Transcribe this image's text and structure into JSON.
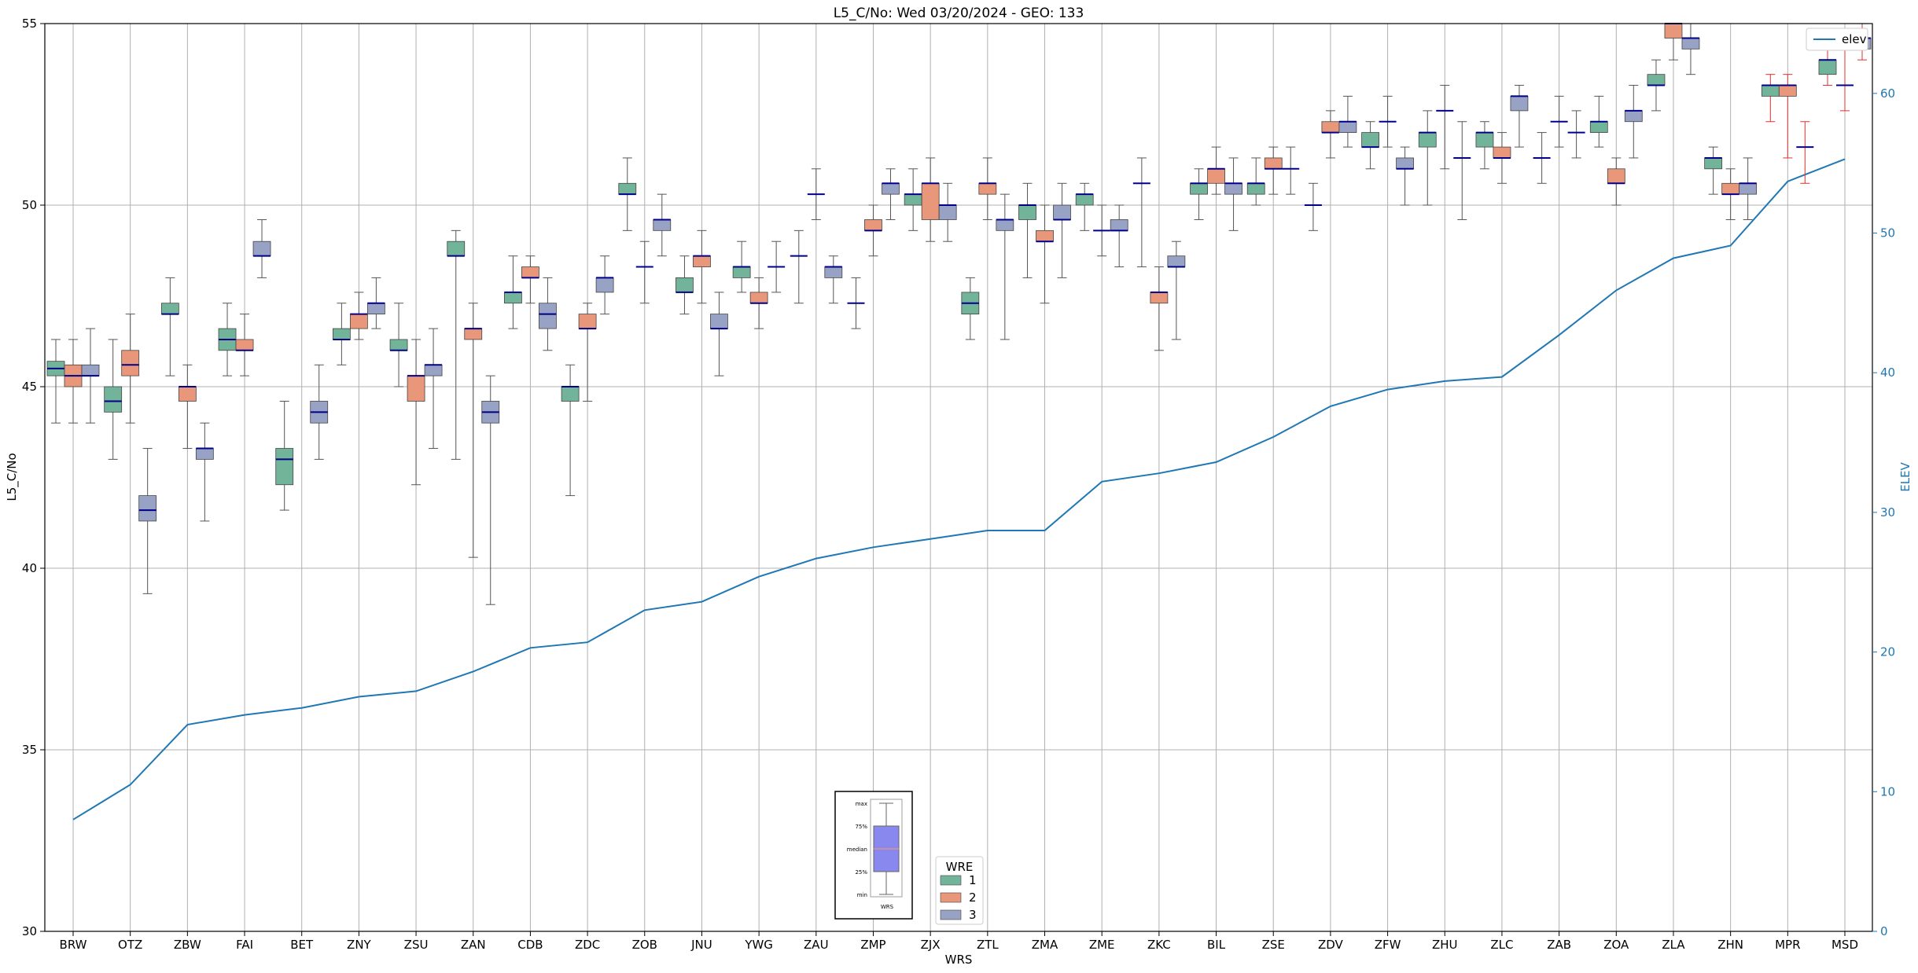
{
  "chart_data": {
    "type": "box",
    "title": "L5_C/No: Wed 03/20/2024 - GEO: 133",
    "xlabel": "WRS",
    "ylabel": "L5_C/No",
    "y2label": "ELEV",
    "ylim": [
      30,
      55
    ],
    "y2lim": [
      0,
      65
    ],
    "yticks": [
      30,
      35,
      40,
      45,
      50,
      55
    ],
    "y2ticks": [
      0,
      10,
      20,
      30,
      40,
      50,
      60
    ],
    "grid": true,
    "categories": [
      "BRW",
      "OTZ",
      "ZBW",
      "FAI",
      "BET",
      "ZNY",
      "ZSU",
      "ZAN",
      "CDB",
      "ZDC",
      "ZOB",
      "JNU",
      "YWG",
      "ZAU",
      "ZMP",
      "ZJX",
      "ZTL",
      "ZMA",
      "ZME",
      "ZKC",
      "BIL",
      "ZSE",
      "ZDV",
      "ZFW",
      "ZHU",
      "ZLC",
      "ZAB",
      "ZOA",
      "ZLA",
      "ZHN",
      "MPR",
      "MSD"
    ],
    "elev_series": {
      "name": "elev",
      "values": [
        8.0,
        10.5,
        14.8,
        15.5,
        16.0,
        16.8,
        17.2,
        18.6,
        20.3,
        20.7,
        23.0,
        23.6,
        25.4,
        26.7,
        27.5,
        28.1,
        28.7,
        28.7,
        32.2,
        32.8,
        33.6,
        35.4,
        37.6,
        38.8,
        39.4,
        39.7,
        42.7,
        45.9,
        48.2,
        49.1,
        53.7,
        55.3
      ]
    },
    "legend": {
      "title": "WRE",
      "placement": "lower-center",
      "entries": [
        "1",
        "2",
        "3"
      ],
      "colors": [
        "#72b49a",
        "#e8977a",
        "#97a2c4"
      ]
    },
    "elev_legend": {
      "label": "elev",
      "placement": "top-right",
      "color": "#1f77b4"
    },
    "box_series": [
      {
        "wrs": "BRW",
        "wre": "1",
        "min": 44.0,
        "q1": 45.3,
        "median": 45.5,
        "q3": 45.7,
        "max": 46.3
      },
      {
        "wrs": "BRW",
        "wre": "2",
        "min": 44.0,
        "q1": 45.0,
        "median": 45.3,
        "q3": 45.6,
        "max": 46.3
      },
      {
        "wrs": "BRW",
        "wre": "3",
        "min": 44.0,
        "q1": 45.3,
        "median": 45.3,
        "q3": 45.6,
        "max": 46.6
      },
      {
        "wrs": "OTZ",
        "wre": "1",
        "min": 43.0,
        "q1": 44.3,
        "median": 44.6,
        "q3": 45.0,
        "max": 46.3
      },
      {
        "wrs": "OTZ",
        "wre": "2",
        "min": 44.0,
        "q1": 45.3,
        "median": 45.6,
        "q3": 46.0,
        "max": 47.0
      },
      {
        "wrs": "OTZ",
        "wre": "3",
        "min": 39.3,
        "q1": 41.3,
        "median": 41.6,
        "q3": 42.0,
        "max": 43.3
      },
      {
        "wrs": "ZBW",
        "wre": "1",
        "min": 45.3,
        "q1": 47.0,
        "median": 47.0,
        "q3": 47.3,
        "max": 48.0
      },
      {
        "wrs": "ZBW",
        "wre": "2",
        "min": 43.3,
        "q1": 44.6,
        "median": 45.0,
        "q3": 45.0,
        "max": 45.6
      },
      {
        "wrs": "ZBW",
        "wre": "3",
        "min": 41.3,
        "q1": 43.0,
        "median": 43.3,
        "q3": 43.3,
        "max": 44.0
      },
      {
        "wrs": "FAI",
        "wre": "1",
        "min": 45.3,
        "q1": 46.0,
        "median": 46.3,
        "q3": 46.6,
        "max": 47.3
      },
      {
        "wrs": "FAI",
        "wre": "2",
        "min": 45.3,
        "q1": 46.0,
        "median": 46.0,
        "q3": 46.3,
        "max": 47.0
      },
      {
        "wrs": "FAI",
        "wre": "3",
        "min": 48.0,
        "q1": 48.6,
        "median": 48.6,
        "q3": 49.0,
        "max": 49.6
      },
      {
        "wrs": "BET",
        "wre": "1",
        "min": 41.6,
        "q1": 42.3,
        "median": 43.0,
        "q3": 43.3,
        "max": 44.6
      },
      {
        "wrs": "BET",
        "wre": "3",
        "min": 43.0,
        "q1": 44.0,
        "median": 44.3,
        "q3": 44.6,
        "max": 45.6
      },
      {
        "wrs": "ZNY",
        "wre": "1",
        "min": 45.6,
        "q1": 46.3,
        "median": 46.3,
        "q3": 46.6,
        "max": 47.3
      },
      {
        "wrs": "ZNY",
        "wre": "2",
        "min": 46.3,
        "q1": 46.6,
        "median": 47.0,
        "q3": 47.0,
        "max": 47.6
      },
      {
        "wrs": "ZNY",
        "wre": "3",
        "min": 46.6,
        "q1": 47.0,
        "median": 47.3,
        "q3": 47.3,
        "max": 48.0
      },
      {
        "wrs": "ZSU",
        "wre": "1",
        "min": 45.0,
        "q1": 46.0,
        "median": 46.0,
        "q3": 46.3,
        "max": 47.3
      },
      {
        "wrs": "ZSU",
        "wre": "2",
        "min": 42.3,
        "q1": 44.6,
        "median": 45.3,
        "q3": 45.3,
        "max": 46.3
      },
      {
        "wrs": "ZSU",
        "wre": "3",
        "min": 43.3,
        "q1": 45.3,
        "median": 45.6,
        "q3": 45.6,
        "max": 46.6
      },
      {
        "wrs": "ZAN",
        "wre": "1",
        "min": 43.0,
        "q1": 48.6,
        "median": 48.6,
        "q3": 49.0,
        "max": 49.3
      },
      {
        "wrs": "ZAN",
        "wre": "2",
        "min": 40.3,
        "q1": 46.3,
        "median": 46.6,
        "q3": 46.6,
        "max": 47.3
      },
      {
        "wrs": "ZAN",
        "wre": "3",
        "min": 39.0,
        "q1": 44.0,
        "median": 44.3,
        "q3": 44.6,
        "max": 45.3
      },
      {
        "wrs": "CDB",
        "wre": "1",
        "min": 46.6,
        "q1": 47.3,
        "median": 47.6,
        "q3": 47.6,
        "max": 48.6
      },
      {
        "wrs": "CDB",
        "wre": "2",
        "min": 47.3,
        "q1": 48.0,
        "median": 48.0,
        "q3": 48.3,
        "max": 48.6
      },
      {
        "wrs": "CDB",
        "wre": "3",
        "min": 46.0,
        "q1": 46.6,
        "median": 47.0,
        "q3": 47.3,
        "max": 48.0
      },
      {
        "wrs": "ZDC",
        "wre": "1",
        "min": 42.0,
        "q1": 44.6,
        "median": 45.0,
        "q3": 45.0,
        "max": 45.6
      },
      {
        "wrs": "ZDC",
        "wre": "2",
        "min": 44.6,
        "q1": 46.6,
        "median": 46.6,
        "q3": 47.0,
        "max": 47.3
      },
      {
        "wrs": "ZDC",
        "wre": "3",
        "min": 47.0,
        "q1": 47.6,
        "median": 48.0,
        "q3": 48.0,
        "max": 48.6
      },
      {
        "wrs": "ZOB",
        "wre": "1",
        "min": 49.3,
        "q1": 50.3,
        "median": 50.3,
        "q3": 50.6,
        "max": 51.3
      },
      {
        "wrs": "ZOB",
        "wre": "2",
        "min": 47.3,
        "q1": 48.3,
        "median": 48.3,
        "q3": 48.3,
        "max": 49.0
      },
      {
        "wrs": "ZOB",
        "wre": "3",
        "min": 48.6,
        "q1": 49.3,
        "median": 49.6,
        "q3": 49.6,
        "max": 50.3
      },
      {
        "wrs": "JNU",
        "wre": "1",
        "min": 47.0,
        "q1": 47.6,
        "median": 47.6,
        "q3": 48.0,
        "max": 48.6
      },
      {
        "wrs": "JNU",
        "wre": "2",
        "min": 47.3,
        "q1": 48.3,
        "median": 48.6,
        "q3": 48.6,
        "max": 49.3
      },
      {
        "wrs": "JNU",
        "wre": "3",
        "min": 45.3,
        "q1": 46.6,
        "median": 46.6,
        "q3": 47.0,
        "max": 47.6
      },
      {
        "wrs": "YWG",
        "wre": "1",
        "min": 47.6,
        "q1": 48.0,
        "median": 48.3,
        "q3": 48.3,
        "max": 49.0
      },
      {
        "wrs": "YWG",
        "wre": "2",
        "min": 46.6,
        "q1": 47.3,
        "median": 47.3,
        "q3": 47.6,
        "max": 48.0
      },
      {
        "wrs": "YWG",
        "wre": "3",
        "min": 47.6,
        "q1": 48.3,
        "median": 48.3,
        "q3": 48.3,
        "max": 49.0
      },
      {
        "wrs": "ZAU",
        "wre": "1",
        "min": 47.3,
        "q1": 48.6,
        "median": 48.6,
        "q3": 48.6,
        "max": 49.3
      },
      {
        "wrs": "ZAU",
        "wre": "2",
        "min": 49.6,
        "q1": 50.3,
        "median": 50.3,
        "q3": 50.3,
        "max": 51.0
      },
      {
        "wrs": "ZAU",
        "wre": "3",
        "min": 47.3,
        "q1": 48.0,
        "median": 48.3,
        "q3": 48.3,
        "max": 48.6
      },
      {
        "wrs": "ZMP",
        "wre": "1",
        "min": 46.6,
        "q1": 47.3,
        "median": 47.3,
        "q3": 47.3,
        "max": 48.0
      },
      {
        "wrs": "ZMP",
        "wre": "2",
        "min": 48.6,
        "q1": 49.3,
        "median": 49.3,
        "q3": 49.6,
        "max": 50.0
      },
      {
        "wrs": "ZMP",
        "wre": "3",
        "min": 49.6,
        "q1": 50.3,
        "median": 50.6,
        "q3": 50.6,
        "max": 51.0
      },
      {
        "wrs": "ZJX",
        "wre": "1",
        "min": 49.3,
        "q1": 50.0,
        "median": 50.3,
        "q3": 50.3,
        "max": 51.0
      },
      {
        "wrs": "ZJX",
        "wre": "2",
        "min": 49.0,
        "q1": 49.6,
        "median": 50.6,
        "q3": 50.6,
        "max": 51.3
      },
      {
        "wrs": "ZJX",
        "wre": "3",
        "min": 49.0,
        "q1": 49.6,
        "median": 50.0,
        "q3": 50.0,
        "max": 50.6
      },
      {
        "wrs": "ZTL",
        "wre": "1",
        "min": 46.3,
        "q1": 47.0,
        "median": 47.3,
        "q3": 47.6,
        "max": 48.0
      },
      {
        "wrs": "ZTL",
        "wre": "2",
        "min": 49.6,
        "q1": 50.3,
        "median": 50.6,
        "q3": 50.6,
        "max": 51.3
      },
      {
        "wrs": "ZTL",
        "wre": "3",
        "min": 46.3,
        "q1": 49.3,
        "median": 49.6,
        "q3": 49.6,
        "max": 50.3
      },
      {
        "wrs": "ZMA",
        "wre": "1",
        "min": 48.0,
        "q1": 49.6,
        "median": 50.0,
        "q3": 50.0,
        "max": 50.6
      },
      {
        "wrs": "ZMA",
        "wre": "2",
        "min": 47.3,
        "q1": 49.0,
        "median": 49.0,
        "q3": 49.3,
        "max": 50.0
      },
      {
        "wrs": "ZMA",
        "wre": "3",
        "min": 48.0,
        "q1": 49.6,
        "median": 49.6,
        "q3": 50.0,
        "max": 50.6
      },
      {
        "wrs": "ZME",
        "wre": "1",
        "min": 49.3,
        "q1": 50.0,
        "median": 50.3,
        "q3": 50.3,
        "max": 50.6
      },
      {
        "wrs": "ZME",
        "wre": "2",
        "min": 48.6,
        "q1": 49.3,
        "median": 49.3,
        "q3": 49.3,
        "max": 50.0
      },
      {
        "wrs": "ZME",
        "wre": "3",
        "min": 48.3,
        "q1": 49.3,
        "median": 49.3,
        "q3": 49.6,
        "max": 50.0
      },
      {
        "wrs": "ZKC",
        "wre": "1",
        "min": 48.3,
        "q1": 50.6,
        "median": 50.6,
        "q3": 50.6,
        "max": 51.3
      },
      {
        "wrs": "ZKC",
        "wre": "2",
        "min": 46.0,
        "q1": 47.3,
        "median": 47.6,
        "q3": 47.6,
        "max": 48.3
      },
      {
        "wrs": "ZKC",
        "wre": "3",
        "min": 46.3,
        "q1": 48.3,
        "median": 48.3,
        "q3": 48.6,
        "max": 49.0
      },
      {
        "wrs": "BIL",
        "wre": "1",
        "min": 49.6,
        "q1": 50.3,
        "median": 50.6,
        "q3": 50.6,
        "max": 51.0
      },
      {
        "wrs": "BIL",
        "wre": "2",
        "min": 50.3,
        "q1": 50.6,
        "median": 51.0,
        "q3": 51.0,
        "max": 51.6
      },
      {
        "wrs": "BIL",
        "wre": "3",
        "min": 49.3,
        "q1": 50.3,
        "median": 50.6,
        "q3": 50.6,
        "max": 51.3
      },
      {
        "wrs": "ZSE",
        "wre": "1",
        "min": 50.0,
        "q1": 50.3,
        "median": 50.6,
        "q3": 50.6,
        "max": 51.3
      },
      {
        "wrs": "ZSE",
        "wre": "2",
        "min": 50.3,
        "q1": 51.0,
        "median": 51.0,
        "q3": 51.3,
        "max": 51.6
      },
      {
        "wrs": "ZSE",
        "wre": "3",
        "min": 50.3,
        "q1": 51.0,
        "median": 51.0,
        "q3": 51.0,
        "max": 51.6
      },
      {
        "wrs": "ZDV",
        "wre": "1",
        "min": 49.3,
        "q1": 50.0,
        "median": 50.0,
        "q3": 50.0,
        "max": 50.6
      },
      {
        "wrs": "ZDV",
        "wre": "2",
        "min": 51.3,
        "q1": 52.0,
        "median": 52.0,
        "q3": 52.3,
        "max": 52.6
      },
      {
        "wrs": "ZDV",
        "wre": "3",
        "min": 51.6,
        "q1": 52.0,
        "median": 52.3,
        "q3": 52.3,
        "max": 53.0
      },
      {
        "wrs": "ZFW",
        "wre": "1",
        "min": 51.0,
        "q1": 51.6,
        "median": 51.6,
        "q3": 52.0,
        "max": 52.3
      },
      {
        "wrs": "ZFW",
        "wre": "2",
        "min": 51.6,
        "q1": 52.3,
        "median": 52.3,
        "q3": 52.3,
        "max": 53.0
      },
      {
        "wrs": "ZFW",
        "wre": "3",
        "min": 50.0,
        "q1": 51.0,
        "median": 51.0,
        "q3": 51.3,
        "max": 51.6
      },
      {
        "wrs": "ZHU",
        "wre": "1",
        "min": 50.0,
        "q1": 51.6,
        "median": 52.0,
        "q3": 52.0,
        "max": 52.6
      },
      {
        "wrs": "ZHU",
        "wre": "2",
        "min": 51.0,
        "q1": 52.6,
        "median": 52.6,
        "q3": 52.6,
        "max": 53.3
      },
      {
        "wrs": "ZHU",
        "wre": "3",
        "min": 49.6,
        "q1": 51.3,
        "median": 51.3,
        "q3": 51.3,
        "max": 52.3
      },
      {
        "wrs": "ZLC",
        "wre": "1",
        "min": 51.0,
        "q1": 51.6,
        "median": 52.0,
        "q3": 52.0,
        "max": 52.3
      },
      {
        "wrs": "ZLC",
        "wre": "2",
        "min": 50.6,
        "q1": 51.3,
        "median": 51.3,
        "q3": 51.6,
        "max": 52.0
      },
      {
        "wrs": "ZLC",
        "wre": "3",
        "min": 51.6,
        "q1": 52.6,
        "median": 53.0,
        "q3": 53.0,
        "max": 53.3
      },
      {
        "wrs": "ZAB",
        "wre": "1",
        "min": 50.6,
        "q1": 51.3,
        "median": 51.3,
        "q3": 51.3,
        "max": 52.0
      },
      {
        "wrs": "ZAB",
        "wre": "2",
        "min": 51.6,
        "q1": 52.3,
        "median": 52.3,
        "q3": 52.3,
        "max": 53.0
      },
      {
        "wrs": "ZAB",
        "wre": "3",
        "min": 51.3,
        "q1": 52.0,
        "median": 52.0,
        "q3": 52.0,
        "max": 52.6
      },
      {
        "wrs": "ZOA",
        "wre": "1",
        "min": 51.6,
        "q1": 52.0,
        "median": 52.3,
        "q3": 52.3,
        "max": 53.0
      },
      {
        "wrs": "ZOA",
        "wre": "2",
        "min": 50.0,
        "q1": 50.6,
        "median": 50.6,
        "q3": 51.0,
        "max": 51.3
      },
      {
        "wrs": "ZOA",
        "wre": "3",
        "min": 51.3,
        "q1": 52.3,
        "median": 52.6,
        "q3": 52.6,
        "max": 53.3
      },
      {
        "wrs": "ZLA",
        "wre": "1",
        "min": 52.6,
        "q1": 53.3,
        "median": 53.3,
        "q3": 53.6,
        "max": 54.0
      },
      {
        "wrs": "ZLA",
        "wre": "2",
        "min": 54.0,
        "q1": 54.6,
        "median": 55.0,
        "q3": 55.0,
        "max": 55.3
      },
      {
        "wrs": "ZLA",
        "wre": "3",
        "min": 53.6,
        "q1": 54.3,
        "median": 54.6,
        "q3": 54.6,
        "max": 55.0
      },
      {
        "wrs": "ZHN",
        "wre": "1",
        "min": 50.3,
        "q1": 51.0,
        "median": 51.3,
        "q3": 51.3,
        "max": 51.6
      },
      {
        "wrs": "ZHN",
        "wre": "2",
        "min": 49.6,
        "q1": 50.3,
        "median": 50.3,
        "q3": 50.6,
        "max": 51.0
      },
      {
        "wrs": "ZHN",
        "wre": "3",
        "min": 49.6,
        "q1": 50.3,
        "median": 50.6,
        "q3": 50.6,
        "max": 51.3
      },
      {
        "wrs": "MPR",
        "wre": "1",
        "min": 52.3,
        "q1": 53.0,
        "median": 53.3,
        "q3": 53.3,
        "max": 53.6
      },
      {
        "wrs": "MPR",
        "wre": "2",
        "min": 51.3,
        "q1": 53.0,
        "median": 53.3,
        "q3": 53.3,
        "max": 53.6
      },
      {
        "wrs": "MPR",
        "wre": "3",
        "min": 50.6,
        "q1": 51.6,
        "median": 51.6,
        "q3": 51.6,
        "max": 52.3
      },
      {
        "wrs": "MSD",
        "wre": "1",
        "min": 53.3,
        "q1": 53.6,
        "median": 54.0,
        "q3": 54.0,
        "max": 54.3
      },
      {
        "wrs": "MSD",
        "wre": "2",
        "min": 52.6,
        "q1": 53.3,
        "median": 53.3,
        "q3": 53.3,
        "max": 54.6
      },
      {
        "wrs": "MSD",
        "wre": "3",
        "min": 54.0,
        "q1": 54.3,
        "median": 54.6,
        "q3": 54.6,
        "max": 55.0
      }
    ],
    "explainer": {
      "labels": [
        "max",
        "75%",
        "median",
        "25%",
        "min"
      ],
      "caption": "WRS",
      "color": "#8888ee"
    }
  }
}
